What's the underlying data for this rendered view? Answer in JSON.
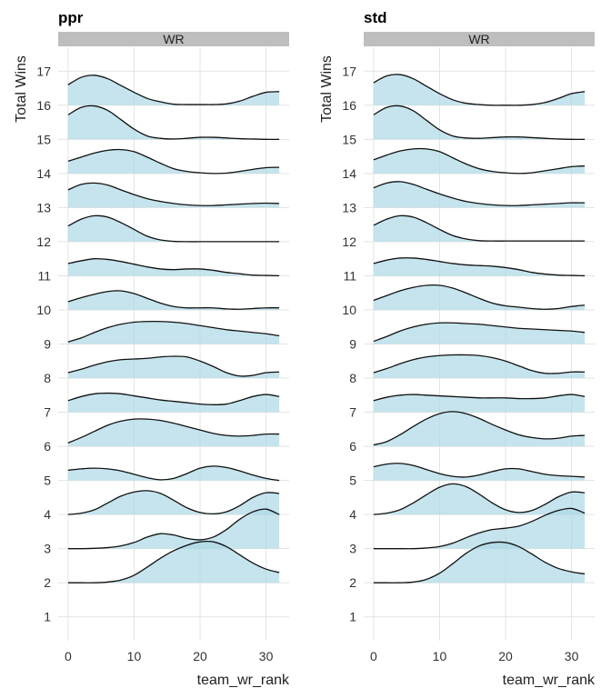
{
  "chart_data": {
    "type": "ridgeline",
    "xlabel": "team_wr_rank",
    "ylabel": "Total Wins",
    "x_ticks": [
      0,
      10,
      20,
      30
    ],
    "y_ticks": [
      "1",
      "2",
      "3",
      "4",
      "5",
      "6",
      "7",
      "8",
      "9",
      "10",
      "11",
      "12",
      "13",
      "14",
      "15",
      "16",
      "17"
    ],
    "xlim": [
      -1.5,
      33.5
    ],
    "ylim": [
      0.3,
      17.7
    ],
    "grid": true,
    "fill_color": "#add8e6",
    "line_color": "#111111",
    "x": [
      0,
      2,
      4,
      6,
      8,
      10,
      12,
      14,
      16,
      18,
      20,
      22,
      24,
      26,
      28,
      30,
      32
    ],
    "facets": [
      {
        "title": "ppr",
        "strip": "WR",
        "ridges": [
          {
            "wins": 16,
            "heights": [
              0.6,
              0.82,
              0.88,
              0.78,
              0.58,
              0.38,
              0.2,
              0.1,
              0.03,
              0.02,
              0.02,
              0.02,
              0.04,
              0.12,
              0.26,
              0.38,
              0.4
            ]
          },
          {
            "wins": 15,
            "heights": [
              0.72,
              0.94,
              0.98,
              0.85,
              0.58,
              0.3,
              0.1,
              0.03,
              0.01,
              0.03,
              0.06,
              0.06,
              0.04,
              0.02,
              0.01,
              0.0,
              0.0
            ]
          },
          {
            "wins": 14,
            "heights": [
              0.36,
              0.48,
              0.6,
              0.68,
              0.7,
              0.64,
              0.48,
              0.3,
              0.14,
              0.06,
              0.02,
              0.0,
              0.01,
              0.06,
              0.12,
              0.17,
              0.18
            ]
          },
          {
            "wins": 13,
            "heights": [
              0.52,
              0.68,
              0.72,
              0.66,
              0.52,
              0.38,
              0.26,
              0.18,
              0.12,
              0.08,
              0.06,
              0.06,
              0.08,
              0.1,
              0.12,
              0.13,
              0.12
            ]
          },
          {
            "wins": 12,
            "heights": [
              0.46,
              0.66,
              0.76,
              0.72,
              0.56,
              0.36,
              0.16,
              0.05,
              0.01,
              0.0,
              0.0,
              0.0,
              0.0,
              0.0,
              0.0,
              0.0,
              0.0
            ]
          },
          {
            "wins": 11,
            "heights": [
              0.36,
              0.44,
              0.5,
              0.48,
              0.42,
              0.34,
              0.26,
              0.2,
              0.18,
              0.2,
              0.2,
              0.16,
              0.1,
              0.06,
              0.02,
              0.01,
              0.0
            ]
          },
          {
            "wins": 10,
            "heights": [
              0.24,
              0.36,
              0.46,
              0.54,
              0.56,
              0.48,
              0.34,
              0.2,
              0.1,
              0.06,
              0.06,
              0.06,
              0.03,
              0.02,
              0.04,
              0.06,
              0.06
            ]
          },
          {
            "wins": 9,
            "heights": [
              0.06,
              0.18,
              0.34,
              0.48,
              0.58,
              0.64,
              0.66,
              0.66,
              0.64,
              0.6,
              0.54,
              0.48,
              0.42,
              0.38,
              0.34,
              0.3,
              0.24
            ]
          },
          {
            "wins": 8,
            "heights": [
              0.16,
              0.26,
              0.38,
              0.48,
              0.54,
              0.56,
              0.58,
              0.62,
              0.64,
              0.62,
              0.5,
              0.34,
              0.16,
              0.06,
              0.08,
              0.16,
              0.18
            ]
          },
          {
            "wins": 7,
            "heights": [
              0.34,
              0.46,
              0.54,
              0.56,
              0.54,
              0.48,
              0.42,
              0.36,
              0.32,
              0.28,
              0.24,
              0.22,
              0.24,
              0.34,
              0.46,
              0.52,
              0.46
            ]
          },
          {
            "wins": 6,
            "heights": [
              0.1,
              0.26,
              0.44,
              0.62,
              0.74,
              0.8,
              0.8,
              0.76,
              0.68,
              0.58,
              0.48,
              0.38,
              0.32,
              0.3,
              0.32,
              0.36,
              0.36
            ]
          },
          {
            "wins": 5,
            "heights": [
              0.3,
              0.34,
              0.36,
              0.34,
              0.28,
              0.18,
              0.08,
              0.02,
              0.06,
              0.2,
              0.36,
              0.42,
              0.38,
              0.28,
              0.16,
              0.06,
              0.0
            ]
          },
          {
            "wins": 4,
            "heights": [
              0.0,
              0.04,
              0.14,
              0.34,
              0.54,
              0.66,
              0.7,
              0.62,
              0.42,
              0.2,
              0.06,
              0.02,
              0.08,
              0.26,
              0.5,
              0.64,
              0.62
            ]
          },
          {
            "wins": 3,
            "heights": [
              0.0,
              0.0,
              0.01,
              0.03,
              0.08,
              0.18,
              0.34,
              0.44,
              0.4,
              0.3,
              0.26,
              0.34,
              0.56,
              0.86,
              1.08,
              1.16,
              1.0
            ]
          },
          {
            "wins": 2,
            "heights": [
              0.0,
              0.0,
              0.0,
              0.02,
              0.08,
              0.22,
              0.46,
              0.72,
              0.94,
              1.1,
              1.2,
              1.2,
              1.06,
              0.82,
              0.58,
              0.4,
              0.3
            ]
          }
        ]
      },
      {
        "title": "std",
        "strip": "WR",
        "ridges": [
          {
            "wins": 16,
            "heights": [
              0.66,
              0.86,
              0.9,
              0.78,
              0.56,
              0.34,
              0.16,
              0.06,
              0.02,
              0.0,
              0.0,
              0.0,
              0.02,
              0.08,
              0.2,
              0.34,
              0.4
            ]
          },
          {
            "wins": 15,
            "heights": [
              0.72,
              0.94,
              0.98,
              0.84,
              0.56,
              0.28,
              0.1,
              0.04,
              0.03,
              0.05,
              0.07,
              0.07,
              0.05,
              0.03,
              0.01,
              0.0,
              0.0
            ]
          },
          {
            "wins": 14,
            "heights": [
              0.4,
              0.54,
              0.66,
              0.72,
              0.72,
              0.64,
              0.46,
              0.28,
              0.14,
              0.06,
              0.02,
              0.0,
              0.02,
              0.08,
              0.14,
              0.2,
              0.22
            ]
          },
          {
            "wins": 13,
            "heights": [
              0.58,
              0.72,
              0.76,
              0.68,
              0.54,
              0.4,
              0.28,
              0.18,
              0.12,
              0.08,
              0.06,
              0.06,
              0.08,
              0.1,
              0.12,
              0.14,
              0.14
            ]
          },
          {
            "wins": 12,
            "heights": [
              0.48,
              0.66,
              0.76,
              0.72,
              0.56,
              0.36,
              0.18,
              0.08,
              0.03,
              0.02,
              0.02,
              0.02,
              0.02,
              0.02,
              0.02,
              0.02,
              0.02
            ]
          },
          {
            "wins": 11,
            "heights": [
              0.36,
              0.46,
              0.52,
              0.52,
              0.48,
              0.42,
              0.36,
              0.32,
              0.3,
              0.28,
              0.24,
              0.18,
              0.1,
              0.05,
              0.02,
              0.01,
              0.0
            ]
          },
          {
            "wins": 10,
            "heights": [
              0.28,
              0.42,
              0.56,
              0.66,
              0.72,
              0.72,
              0.64,
              0.5,
              0.34,
              0.2,
              0.12,
              0.08,
              0.04,
              0.02,
              0.04,
              0.1,
              0.14
            ]
          },
          {
            "wins": 9,
            "heights": [
              0.08,
              0.22,
              0.38,
              0.5,
              0.58,
              0.62,
              0.62,
              0.6,
              0.58,
              0.54,
              0.5,
              0.46,
              0.44,
              0.42,
              0.4,
              0.38,
              0.34
            ]
          },
          {
            "wins": 8,
            "heights": [
              0.16,
              0.28,
              0.42,
              0.54,
              0.62,
              0.66,
              0.68,
              0.68,
              0.66,
              0.6,
              0.5,
              0.36,
              0.22,
              0.14,
              0.14,
              0.18,
              0.18
            ]
          },
          {
            "wins": 7,
            "heights": [
              0.34,
              0.44,
              0.5,
              0.52,
              0.5,
              0.48,
              0.46,
              0.44,
              0.42,
              0.42,
              0.42,
              0.4,
              0.4,
              0.42,
              0.48,
              0.52,
              0.46
            ]
          },
          {
            "wins": 6,
            "heights": [
              0.04,
              0.14,
              0.34,
              0.58,
              0.8,
              0.96,
              1.02,
              0.96,
              0.82,
              0.64,
              0.48,
              0.34,
              0.26,
              0.22,
              0.24,
              0.3,
              0.32
            ]
          },
          {
            "wins": 5,
            "heights": [
              0.4,
              0.48,
              0.5,
              0.44,
              0.32,
              0.2,
              0.12,
              0.1,
              0.16,
              0.26,
              0.34,
              0.34,
              0.26,
              0.18,
              0.14,
              0.12,
              0.1
            ]
          },
          {
            "wins": 4,
            "heights": [
              0.0,
              0.04,
              0.14,
              0.34,
              0.58,
              0.8,
              0.9,
              0.82,
              0.6,
              0.34,
              0.14,
              0.06,
              0.12,
              0.3,
              0.52,
              0.66,
              0.64
            ]
          },
          {
            "wins": 3,
            "heights": [
              0.0,
              0.0,
              0.0,
              0.0,
              0.02,
              0.06,
              0.16,
              0.32,
              0.46,
              0.56,
              0.6,
              0.66,
              0.8,
              0.98,
              1.12,
              1.18,
              1.04
            ]
          },
          {
            "wins": 2,
            "heights": [
              0.0,
              0.0,
              0.0,
              0.02,
              0.1,
              0.28,
              0.56,
              0.86,
              1.08,
              1.18,
              1.18,
              1.06,
              0.84,
              0.6,
              0.42,
              0.32,
              0.26
            ]
          }
        ]
      }
    ]
  }
}
